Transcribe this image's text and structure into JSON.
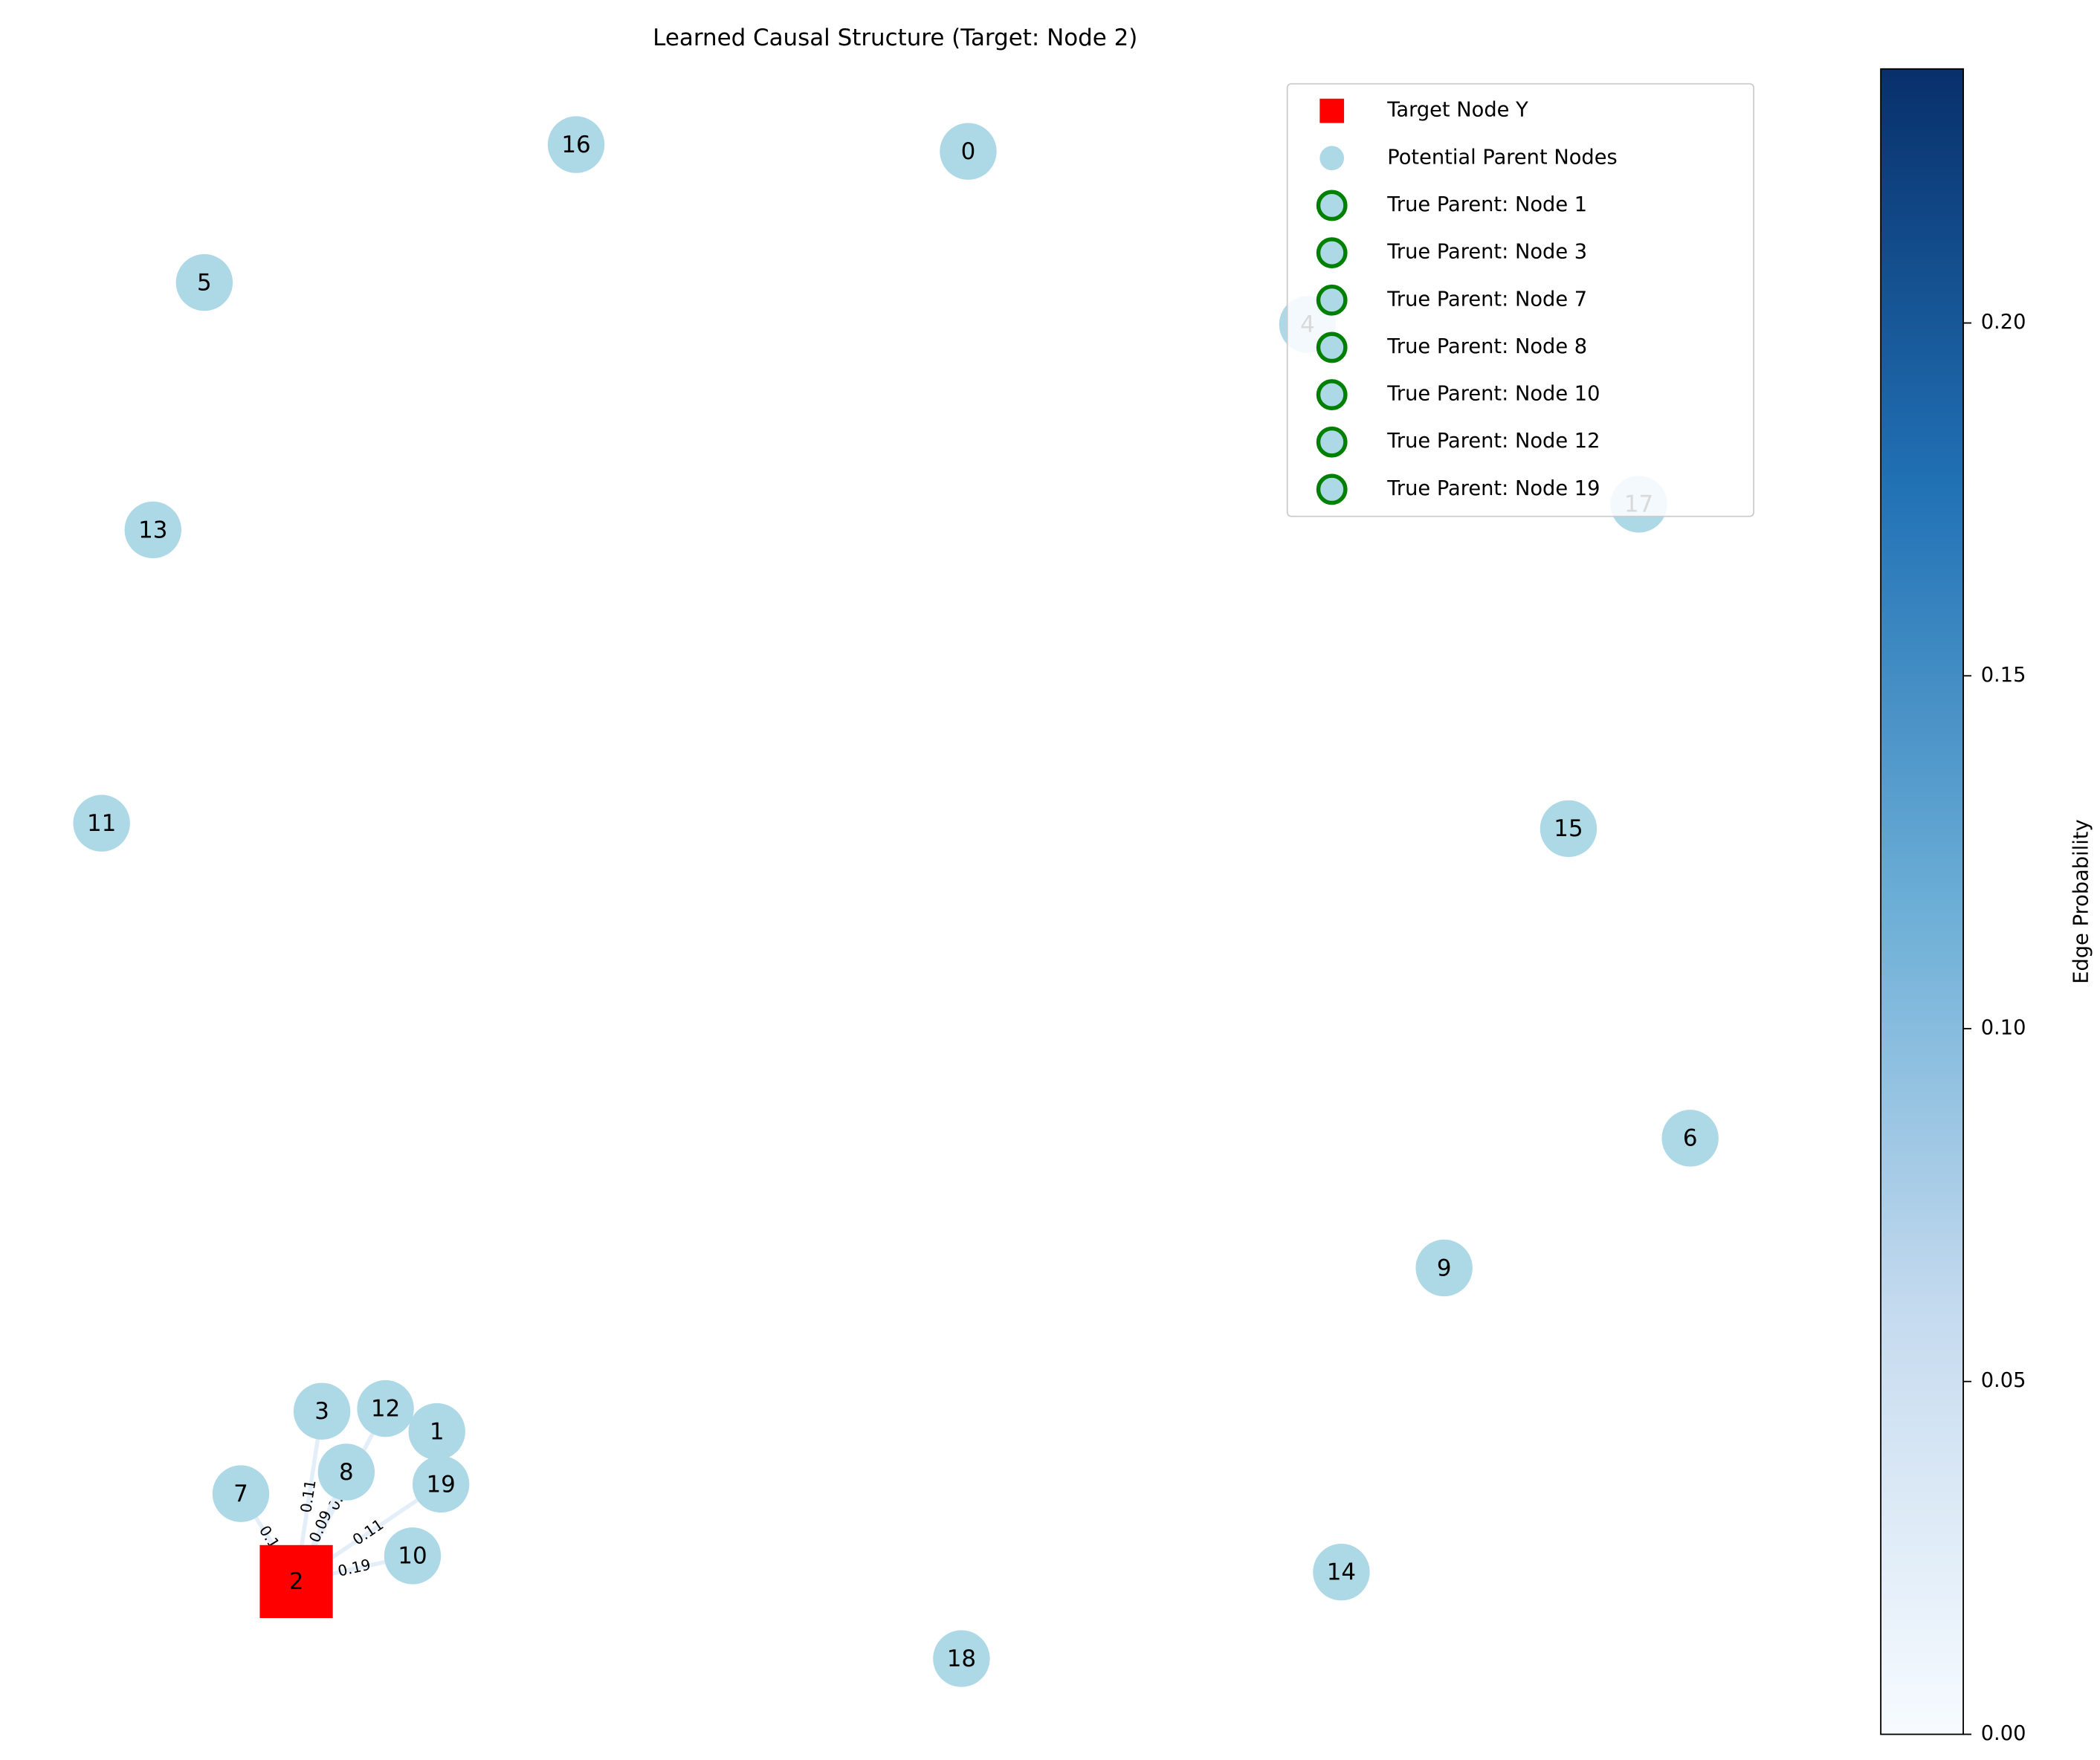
{
  "title": "Learned Causal Structure (Target: Node 2)",
  "nodes": [
    {
      "label": "0"
    },
    {
      "label": "1"
    },
    {
      "label": "2"
    },
    {
      "label": "3"
    },
    {
      "label": "4"
    },
    {
      "label": "5"
    },
    {
      "label": "6"
    },
    {
      "label": "7"
    },
    {
      "label": "8"
    },
    {
      "label": "9"
    },
    {
      "label": "10"
    },
    {
      "label": "11"
    },
    {
      "label": "12"
    },
    {
      "label": "13"
    },
    {
      "label": "14"
    },
    {
      "label": "15"
    },
    {
      "label": "16"
    },
    {
      "label": "17"
    },
    {
      "label": "18"
    },
    {
      "label": "19"
    }
  ],
  "edges": [
    {
      "source": "7",
      "label": "0.1"
    },
    {
      "source": "3",
      "label": "0.11"
    },
    {
      "source": "12",
      "label": "0.10"
    },
    {
      "source": "8",
      "label": "0.09"
    },
    {
      "source": "19",
      "label": "0.11"
    },
    {
      "source": "10",
      "label": "0.19"
    }
  ],
  "legend": [
    "Target Node Y",
    "Potential Parent Nodes",
    "True Parent: Node 1",
    "True Parent: Node 3",
    "True Parent: Node 7",
    "True Parent: Node 8",
    "True Parent: Node 10",
    "True Parent: Node 12",
    "True Parent: Node 19"
  ],
  "colorbar": {
    "label": "Edge Probability",
    "range": [
      0,
      0.236
    ],
    "ticks": [
      {
        "value": 0,
        "label": "0.00"
      },
      {
        "value": 0.05,
        "label": "0.05"
      },
      {
        "value": 0.1,
        "label": "0.10"
      },
      {
        "value": 0.15,
        "label": "0.15"
      },
      {
        "value": 0.2,
        "label": "0.20"
      }
    ]
  }
}
